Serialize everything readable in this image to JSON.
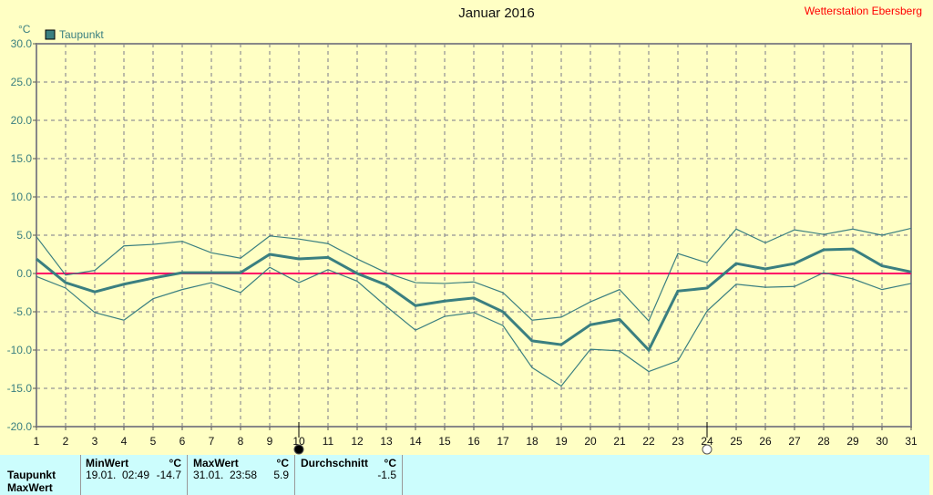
{
  "title": "Januar 2016",
  "station": "Wetterstation Ebersberg",
  "colors": {
    "background": "#ffffc4",
    "series": "#3a7f80",
    "zero_line": "#ff0066",
    "grid": "#7a7a8a",
    "table_bg": "#ccfdfd"
  },
  "chart_data": {
    "type": "line",
    "title": "Januar 2016",
    "ylabel": "°C",
    "xlabel": "",
    "ylim": [
      -20,
      30
    ],
    "xlim": [
      1,
      31
    ],
    "grid": true,
    "legend_position": "top-left",
    "legend": [
      "Taupunkt"
    ],
    "yticks": [
      "30.0",
      "25.0",
      "20.0",
      "15.0",
      "10.0",
      "5.0",
      "0.0",
      "-5.0",
      "-10.0",
      "-15.0",
      "-20.0"
    ],
    "x": [
      1,
      2,
      3,
      4,
      5,
      6,
      7,
      8,
      9,
      10,
      11,
      12,
      13,
      14,
      15,
      16,
      17,
      18,
      19,
      20,
      21,
      22,
      23,
      24,
      25,
      26,
      27,
      28,
      29,
      30,
      31
    ],
    "series": [
      {
        "name": "Taupunkt",
        "role": "average",
        "values": [
          1.9,
          -1.2,
          -2.4,
          -1.4,
          -0.6,
          0.1,
          0.1,
          0.1,
          2.5,
          1.9,
          2.1,
          0.0,
          -1.5,
          -4.2,
          -3.6,
          -3.2,
          -5.0,
          -8.8,
          -9.3,
          -6.7,
          -6.0,
          -10.0,
          -2.3,
          -1.9,
          1.3,
          0.6,
          1.3,
          3.1,
          3.2,
          1.0,
          0.2
        ]
      },
      {
        "role": "max",
        "values": [
          4.8,
          -0.2,
          0.4,
          3.6,
          3.8,
          4.2,
          2.7,
          2.0,
          4.9,
          4.5,
          3.9,
          1.9,
          0.1,
          -1.2,
          -1.3,
          -1.1,
          -2.5,
          -6.1,
          -5.7,
          -3.7,
          -2.1,
          -6.2,
          2.6,
          1.4,
          5.8,
          4.0,
          5.7,
          5.1,
          5.8,
          5.0,
          5.9
        ]
      },
      {
        "role": "min",
        "values": [
          -0.4,
          -1.9,
          -5.1,
          -6.1,
          -3.3,
          -2.1,
          -1.2,
          -2.5,
          0.8,
          -1.2,
          0.5,
          -1.0,
          -4.3,
          -7.4,
          -5.6,
          -5.1,
          -6.8,
          -12.3,
          -14.7,
          -9.9,
          -10.1,
          -12.8,
          -11.4,
          -4.9,
          -1.4,
          -1.8,
          -1.7,
          0.1,
          -0.7,
          -2.1,
          -1.3
        ]
      }
    ],
    "reference_line": 0,
    "markers": [
      {
        "day": 10,
        "icon": "new-moon-icon"
      },
      {
        "day": 24,
        "icon": "full-moon-icon"
      }
    ]
  },
  "table": {
    "row_label": "Taupunkt",
    "next_row_label": "MaxWert",
    "min": {
      "header": "MinWert",
      "unit": "°C",
      "date": "19.01.",
      "time": "02:49",
      "value": "-14.7"
    },
    "max": {
      "header": "MaxWert",
      "unit": "°C",
      "date": "31.01.",
      "time": "23:58",
      "value": "5.9"
    },
    "avg": {
      "header": "Durchschnitt",
      "unit": "°C",
      "value": "-1.5"
    }
  }
}
